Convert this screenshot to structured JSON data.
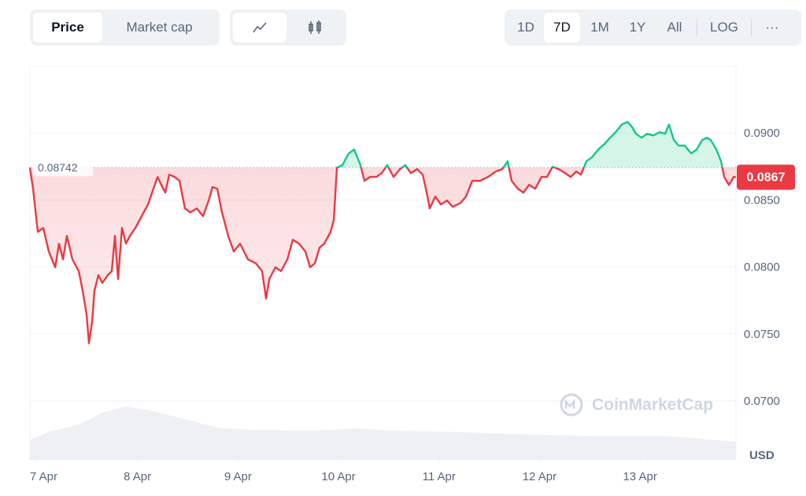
{
  "toolbar": {
    "tabs": [
      "Price",
      "Market cap"
    ],
    "ranges": [
      "1D",
      "7D",
      "1M",
      "1Y",
      "All",
      "LOG",
      "···"
    ]
  },
  "chart_data": {
    "type": "line",
    "watermark": "CoinMarketCap",
    "y_label": "USD",
    "reference_price": 0.08742,
    "current_price": 0.0867,
    "color_up": "#16c784",
    "color_down": "#ea3943",
    "xlim": [
      6.93,
      13.954
    ],
    "xticks": [
      {
        "value": 7,
        "label": "7 Apr"
      },
      {
        "value": 8,
        "label": "8 Apr"
      },
      {
        "value": 9,
        "label": "9 Apr"
      },
      {
        "value": 10,
        "label": "10 Apr"
      },
      {
        "value": 11,
        "label": "11 Apr"
      },
      {
        "value": 12,
        "label": "12 Apr"
      },
      {
        "value": 13,
        "label": "13 Apr"
      }
    ],
    "ylim": [
      0.0656,
      0.095
    ],
    "yticks": [
      {
        "value": 0.07,
        "label": "0.0700"
      },
      {
        "value": 0.075,
        "label": "0.0750"
      },
      {
        "value": 0.08,
        "label": "0.0800"
      },
      {
        "value": 0.085,
        "label": "0.0850"
      },
      {
        "value": 0.09,
        "label": "0.0900"
      }
    ],
    "grid": true,
    "x": [
      6.93,
      6.961,
      7.008,
      7.063,
      7.118,
      7.181,
      7.22,
      7.259,
      7.298,
      7.353,
      7.416,
      7.455,
      7.494,
      7.517,
      7.549,
      7.572,
      7.611,
      7.65,
      7.705,
      7.744,
      7.776,
      7.807,
      7.846,
      7.885,
      7.925,
      7.979,
      8.042,
      8.105,
      8.159,
      8.199,
      8.238,
      8.277,
      8.316,
      8.371,
      8.418,
      8.473,
      8.527,
      8.59,
      8.653,
      8.708,
      8.747,
      8.794,
      8.841,
      8.903,
      8.958,
      9.021,
      9.099,
      9.177,
      9.24,
      9.279,
      9.311,
      9.373,
      9.428,
      9.491,
      9.546,
      9.608,
      9.671,
      9.718,
      9.765,
      9.812,
      9.859,
      9.921,
      9.953,
      9.984,
      10.039,
      10.102,
      10.156,
      10.219,
      10.258,
      10.313,
      10.376,
      10.43,
      10.485,
      10.548,
      10.611,
      10.665,
      10.72,
      10.783,
      10.838,
      10.877,
      10.908,
      10.963,
      11.018,
      11.08,
      11.135,
      11.214,
      11.268,
      11.331,
      11.409,
      11.488,
      11.566,
      11.628,
      11.683,
      11.722,
      11.785,
      11.84,
      11.895,
      11.957,
      12.02,
      12.075,
      12.13,
      12.192,
      12.255,
      12.31,
      12.365,
      12.412,
      12.466,
      12.521,
      12.584,
      12.647,
      12.701,
      12.756,
      12.819,
      12.874,
      12.913,
      12.96,
      13.015,
      13.069,
      13.132,
      13.195,
      13.249,
      13.288,
      13.336,
      13.383,
      13.445,
      13.508,
      13.563,
      13.618,
      13.665,
      13.704,
      13.759,
      13.806,
      13.837,
      13.884,
      13.931,
      13.954
    ],
    "values": [
      0.08742,
      0.08584,
      0.08262,
      0.08291,
      0.08115,
      0.07998,
      0.08174,
      0.08057,
      0.08232,
      0.08057,
      0.07969,
      0.07822,
      0.07646,
      0.0743,
      0.07588,
      0.07822,
      0.07939,
      0.07881,
      0.07939,
      0.07969,
      0.08232,
      0.0791,
      0.08291,
      0.08174,
      0.08232,
      0.08291,
      0.08379,
      0.08467,
      0.08584,
      0.08672,
      0.08613,
      0.08555,
      0.08689,
      0.08672,
      0.08643,
      0.08437,
      0.08408,
      0.08437,
      0.08379,
      0.08496,
      0.08596,
      0.08584,
      0.08408,
      0.08232,
      0.08115,
      0.08174,
      0.08057,
      0.08027,
      0.07969,
      0.07764,
      0.0791,
      0.07998,
      0.07969,
      0.08057,
      0.08203,
      0.08174,
      0.08115,
      0.07998,
      0.08027,
      0.08144,
      0.08174,
      0.08262,
      0.0835,
      0.08742,
      0.0876,
      0.08848,
      0.08877,
      0.0876,
      0.08643,
      0.08672,
      0.08672,
      0.08701,
      0.0876,
      0.08672,
      0.0873,
      0.0876,
      0.08701,
      0.0873,
      0.08689,
      0.08555,
      0.08437,
      0.08525,
      0.08467,
      0.08496,
      0.08449,
      0.08478,
      0.08525,
      0.08643,
      0.08643,
      0.08672,
      0.08713,
      0.0873,
      0.08789,
      0.08643,
      0.08584,
      0.08555,
      0.08613,
      0.08584,
      0.08672,
      0.08672,
      0.08748,
      0.0873,
      0.08701,
      0.08672,
      0.08713,
      0.08689,
      0.08789,
      0.08818,
      0.08877,
      0.08918,
      0.08965,
      0.09006,
      0.09064,
      0.09082,
      0.09053,
      0.08994,
      0.08965,
      0.08994,
      0.08982,
      0.09006,
      0.08994,
      0.09064,
      0.08947,
      0.08906,
      0.08906,
      0.08848,
      0.08877,
      0.08947,
      0.08965,
      0.08947,
      0.08877,
      0.08789,
      0.08672,
      0.08613,
      0.08672,
      0.0867
    ]
  }
}
